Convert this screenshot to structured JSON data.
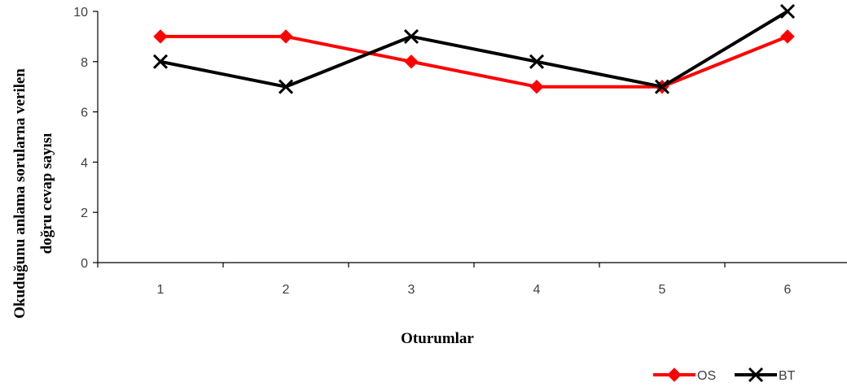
{
  "chart_data": {
    "type": "line",
    "categories": [
      "1",
      "2",
      "3",
      "4",
      "5",
      "6"
    ],
    "series": [
      {
        "name": "OS",
        "values": [
          9,
          9,
          8,
          7,
          7,
          9
        ],
        "color": "#ff0000",
        "marker": "diamond"
      },
      {
        "name": "BT",
        "values": [
          8,
          7,
          9,
          8,
          7,
          10
        ],
        "color": "#000000",
        "marker": "x"
      }
    ],
    "xlabel": "Oturumlar",
    "ylabel_lines": [
      "Okuduğunu anlama sorularna verilen",
      "doğru cevap sayısı"
    ],
    "ylim": [
      0,
      10
    ],
    "yticks": [
      "0",
      "2",
      "4",
      "6",
      "8",
      "10"
    ],
    "grid": false,
    "legend_position": "bottom-right"
  }
}
